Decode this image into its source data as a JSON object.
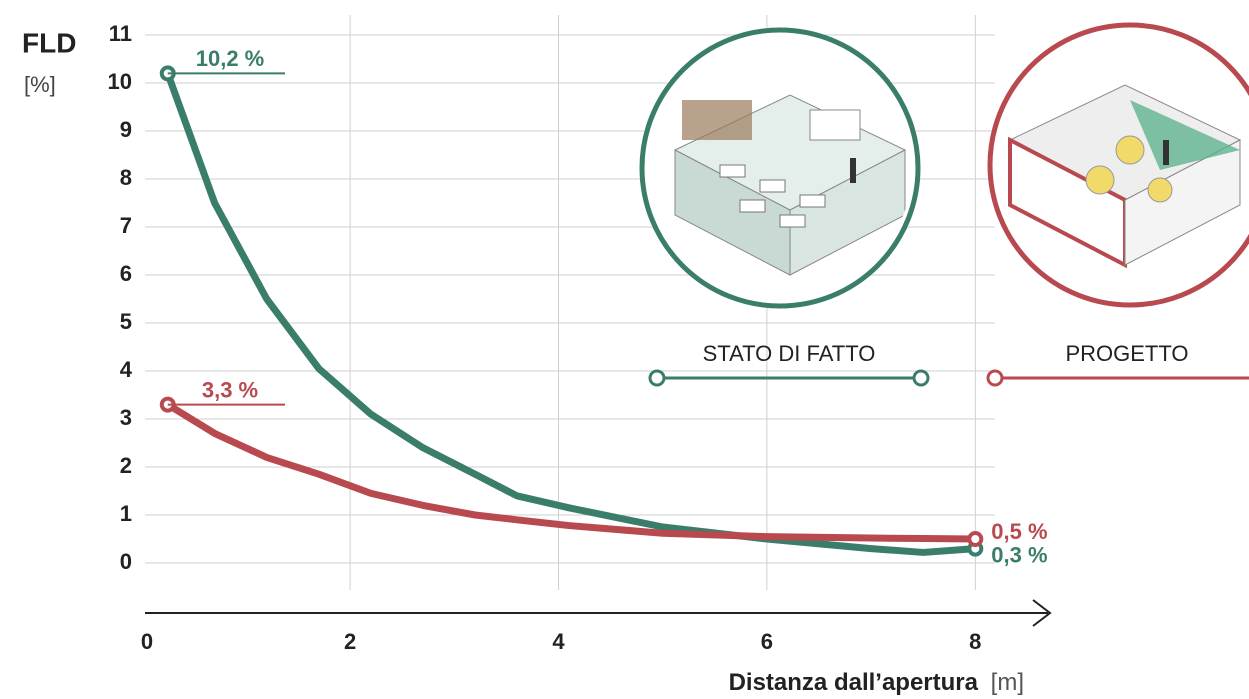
{
  "chart_data": {
    "type": "line",
    "y_label": "FLD",
    "y_unit": "[%]",
    "x_label": "Distanza dall’apertura",
    "x_unit": "[m]",
    "x": [
      0.25,
      0.7,
      1.2,
      1.7,
      2.2,
      2.7,
      3.2,
      3.6,
      4.1,
      5,
      6,
      7,
      7.5,
      8
    ],
    "series": [
      {
        "name": "STATO DI FATTO",
        "color": "#3a7d6b",
        "values": [
          10.2,
          7.5,
          5.5,
          4.05,
          3.1,
          2.4,
          1.85,
          1.4,
          1.15,
          0.75,
          0.5,
          0.3,
          0.22,
          0.3
        ],
        "value_labels": [
          "10,2 %",
          null,
          null,
          null,
          null,
          null,
          null,
          null,
          null,
          null,
          null,
          null,
          null,
          "0,3 %"
        ]
      },
      {
        "name": "PROGETTO",
        "color": "#b84a4f",
        "values": [
          3.3,
          2.7,
          2.2,
          1.85,
          1.45,
          1.2,
          1.0,
          0.9,
          0.78,
          0.62,
          0.55,
          0.52,
          0.51,
          0.5
        ],
        "value_labels": [
          "3,3 %",
          null,
          null,
          null,
          null,
          null,
          null,
          null,
          null,
          null,
          null,
          null,
          null,
          "0,5 %"
        ]
      }
    ],
    "xlim": [
      0,
      8.8
    ],
    "xticks": [
      0,
      2,
      4,
      6,
      8
    ],
    "ylim": [
      0,
      11
    ],
    "yticks": [
      0,
      1,
      2,
      3,
      4,
      5,
      6,
      7,
      8,
      9,
      10,
      11
    ],
    "grid": true
  }
}
